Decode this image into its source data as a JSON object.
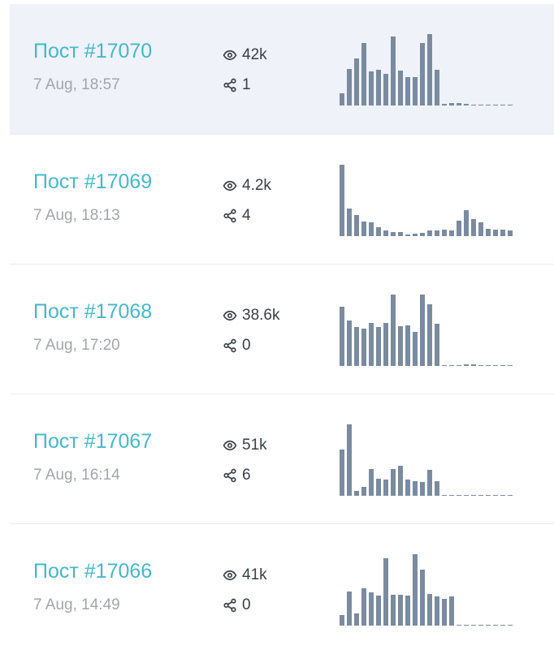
{
  "posts": [
    {
      "title": "Пост #17070",
      "date": "7 Aug, 18:57",
      "views": "42k",
      "shares": "1",
      "selected": true,
      "chart": [
        45,
        135,
        172,
        230,
        125,
        132,
        117,
        252,
        128,
        105,
        105,
        228,
        262,
        130,
        5,
        10,
        8,
        6,
        3,
        2,
        1,
        1,
        1,
        1
      ]
    },
    {
      "title": "Пост #17069",
      "date": "7 Aug, 18:13",
      "views": "4.2k",
      "shares": "4",
      "selected": false,
      "chart": [
        263,
        103,
        78,
        55,
        50,
        33,
        20,
        15,
        15,
        6,
        10,
        13,
        22,
        22,
        24,
        22,
        56,
        97,
        63,
        50,
        28,
        23,
        24,
        20
      ]
    },
    {
      "title": "Пост #17068",
      "date": "7 Aug, 17:20",
      "views": "38.6k",
      "shares": "0",
      "selected": false,
      "chart": [
        182,
        140,
        120,
        115,
        132,
        120,
        132,
        218,
        122,
        125,
        103,
        218,
        188,
        130,
        2,
        2,
        3,
        6,
        4,
        3,
        3,
        2,
        1,
        1
      ]
    },
    {
      "title": "Пост #17067",
      "date": "7 Aug, 16:14",
      "views": "51k",
      "shares": "6",
      "selected": false,
      "chart": [
        155,
        238,
        17,
        30,
        88,
        57,
        53,
        90,
        100,
        55,
        50,
        45,
        87,
        48,
        1,
        1,
        1,
        1,
        1,
        1,
        1,
        1,
        1,
        1
      ]
    },
    {
      "title": "Пост #17066",
      "date": "7 Aug, 14:49",
      "views": "41k",
      "shares": "0",
      "selected": false,
      "chart": [
        35,
        110,
        40,
        120,
        107,
        97,
        217,
        100,
        100,
        97,
        230,
        180,
        102,
        93,
        85,
        93,
        1,
        1,
        1,
        2,
        1,
        1,
        1,
        1
      ]
    }
  ],
  "colors": {
    "title": "#45b8c9",
    "bar": "#7a8ba0",
    "selected_bg": "#eff2f9"
  }
}
